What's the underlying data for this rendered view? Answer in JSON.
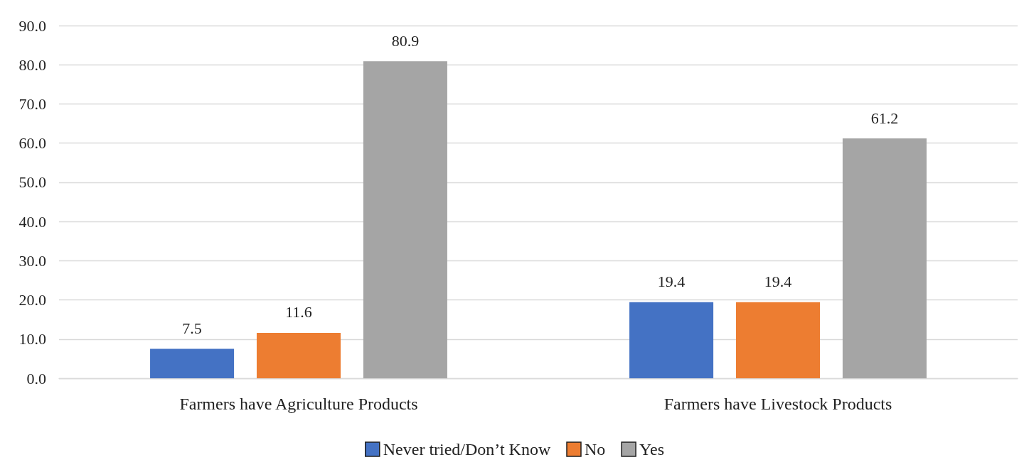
{
  "chart_data": {
    "type": "bar",
    "categories": [
      "Farmers have Agriculture Products",
      "Farmers have Livestock Products"
    ],
    "series": [
      {
        "name": "Never tried/Don’t Know",
        "color": "#4472c4",
        "values": [
          7.5,
          19.4
        ]
      },
      {
        "name": "No",
        "color": "#ed7d31",
        "values": [
          11.6,
          19.4
        ]
      },
      {
        "name": "Yes",
        "color": "#a5a5a5",
        "values": [
          80.9,
          61.2
        ]
      }
    ],
    "ylim": [
      0,
      90
    ],
    "yticks": [
      {
        "value": 0,
        "label": "0.0"
      },
      {
        "value": 10,
        "label": "10.0"
      },
      {
        "value": 20,
        "label": "20.0"
      },
      {
        "value": 30,
        "label": "30.0"
      },
      {
        "value": 40,
        "label": "40.0"
      },
      {
        "value": 50,
        "label": "50.0"
      },
      {
        "value": 60,
        "label": "60.0"
      },
      {
        "value": 70,
        "label": "70.0"
      },
      {
        "value": 80,
        "label": "80.0"
      },
      {
        "value": 90,
        "label": "90.0"
      }
    ],
    "grid": true,
    "legend": "bottom",
    "data_labels": true
  }
}
